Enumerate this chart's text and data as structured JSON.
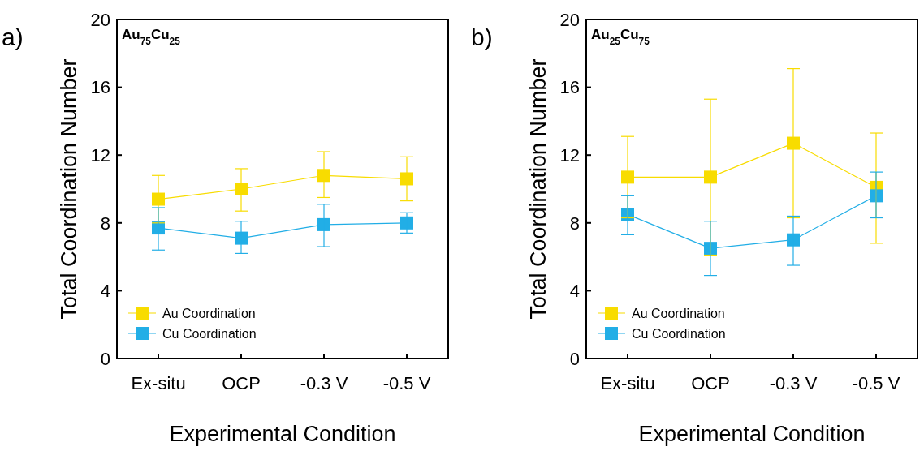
{
  "chart_data": [
    {
      "type": "line",
      "title": "Au$_{75}$Cu$_{25}$",
      "xlabel": "Experimental Condition",
      "ylabel": "Total Coordination Number",
      "annotations": [
        "a)"
      ],
      "categories": [
        "Ex-situ",
        "OCP",
        "-0.3 V",
        "-0.5 V"
      ],
      "ylim": [
        0,
        20
      ],
      "yticks": [
        0,
        4,
        8,
        12,
        16,
        20
      ],
      "grid": false,
      "legend": "bottom left",
      "marker": "square",
      "line_style": "solid",
      "series": [
        {
          "name": "Au Coordination",
          "color": "#f8dc00",
          "values": [
            9.4,
            10.0,
            10.8,
            10.6
          ],
          "errors": [
            [
              8.0,
              10.8
            ],
            [
              8.7,
              11.2
            ],
            [
              9.5,
              12.2
            ],
            [
              9.3,
              11.9
            ]
          ]
        },
        {
          "name": "Cu Coordination",
          "color": "#22aee6",
          "values": [
            7.7,
            7.1,
            7.9,
            8.0
          ],
          "errors": [
            [
              6.4,
              8.9
            ],
            [
              6.2,
              8.1
            ],
            [
              6.6,
              9.1
            ],
            [
              7.4,
              8.6
            ]
          ]
        }
      ]
    },
    {
      "type": "line",
      "title": "Au$_{25}$Cu$_{75}$",
      "xlabel": "Experimental Condition",
      "ylabel": "Total Coordination Number",
      "annotations": [
        "b)"
      ],
      "categories": [
        "Ex-situ",
        "OCP",
        "-0.3 V",
        "-0.5 V"
      ],
      "ylim": [
        0,
        20
      ],
      "yticks": [
        0,
        4,
        8,
        12,
        16,
        20
      ],
      "grid": false,
      "legend": "bottom left",
      "marker": "square",
      "line_style": "solid",
      "series": [
        {
          "name": "Au Coordination",
          "color": "#f8dc00",
          "values": [
            10.7,
            10.7,
            12.7,
            10.1
          ],
          "errors": [
            [
              8.3,
              13.1
            ],
            [
              6.1,
              15.3
            ],
            [
              8.3,
              17.1
            ],
            [
              6.8,
              13.3
            ]
          ]
        },
        {
          "name": "Cu Coordination",
          "color": "#22aee6",
          "values": [
            8.5,
            6.5,
            7.0,
            9.6
          ],
          "errors": [
            [
              7.3,
              9.6
            ],
            [
              4.9,
              8.1
            ],
            [
              5.5,
              8.4
            ],
            [
              8.3,
              11.0
            ]
          ]
        }
      ]
    }
  ]
}
